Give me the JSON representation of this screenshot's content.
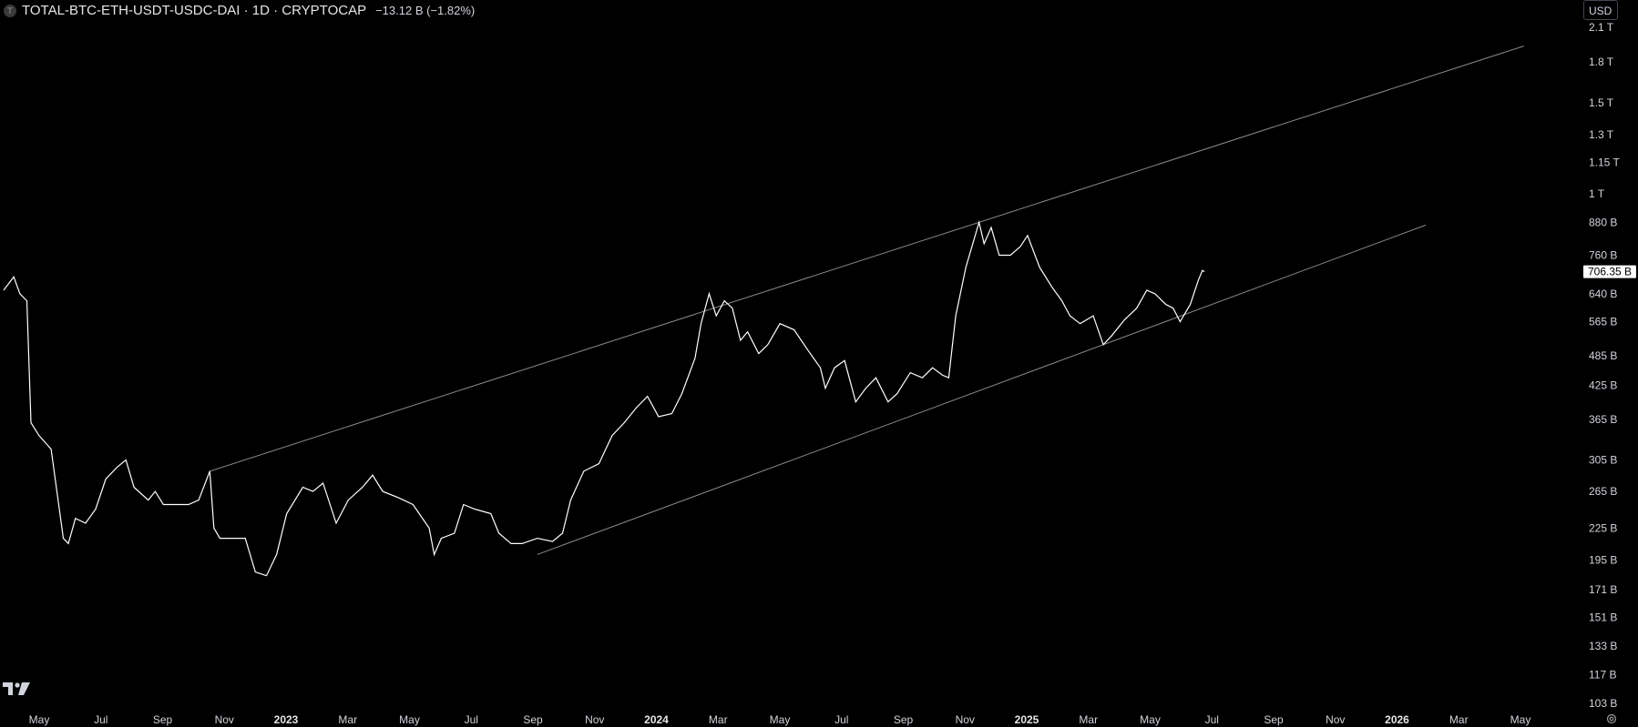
{
  "header": {
    "symbol_icon": "T",
    "title": "TOTAL-BTC-ETH-USDT-USDC-DAI · 1D · CRYPTOCAP",
    "change": "−13.12 B (−1.82%)"
  },
  "currency_button": "USD",
  "last_price_label": "706.35 B",
  "icons": {
    "logo": "tradingview-logo-icon",
    "settings": "settings-icon"
  },
  "colors": {
    "background": "#000000",
    "line": "#ffffff",
    "channel": "#8a8a8a",
    "axis_text": "#d1d4dc"
  },
  "chart_data": {
    "type": "line",
    "scale": "log",
    "grid": false,
    "x_axis_labels": [
      "May",
      "Jul",
      "Sep",
      "Nov",
      "2023",
      "Mar",
      "May",
      "Jul",
      "Sep",
      "Nov",
      "2024",
      "Mar",
      "May",
      "Jul",
      "Sep",
      "Nov",
      "2025",
      "Mar",
      "May",
      "Jul",
      "Sep",
      "Nov",
      "2026",
      "Mar",
      "May"
    ],
    "y_axis_labels": [
      "2.1 T",
      "1.8 T",
      "1.5 T",
      "1.3 T",
      "1.15 T",
      "1 T",
      "880 B",
      "760 B",
      "640 B",
      "565 B",
      "485 B",
      "425 B",
      "365 B",
      "305 B",
      "265 B",
      "225 B",
      "195 B",
      "171 B",
      "151 B",
      "133 B",
      "117 B",
      "103 B"
    ],
    "y_values_billion": [
      2100,
      1800,
      1500,
      1300,
      1150,
      1000,
      880,
      760,
      640,
      565,
      485,
      425,
      365,
      305,
      265,
      225,
      195,
      171,
      151,
      133,
      117,
      103
    ],
    "x_range": [
      "2022-04-15",
      "2026-05-31"
    ],
    "y_range_billion": [
      103,
      2150
    ],
    "series": [
      {
        "unit": "billion USD",
        "values": [
          [
            "2022-04-15",
            650
          ],
          [
            "2022-04-25",
            690
          ],
          [
            "2022-05-01",
            640
          ],
          [
            "2022-05-08",
            620
          ],
          [
            "2022-05-12",
            360
          ],
          [
            "2022-05-20",
            340
          ],
          [
            "2022-06-01",
            320
          ],
          [
            "2022-06-13",
            215
          ],
          [
            "2022-06-18",
            210
          ],
          [
            "2022-06-25",
            235
          ],
          [
            "2022-07-05",
            230
          ],
          [
            "2022-07-15",
            245
          ],
          [
            "2022-07-25",
            280
          ],
          [
            "2022-08-05",
            295
          ],
          [
            "2022-08-14",
            305
          ],
          [
            "2022-08-22",
            270
          ],
          [
            "2022-09-05",
            255
          ],
          [
            "2022-09-12",
            265
          ],
          [
            "2022-09-20",
            250
          ],
          [
            "2022-10-01",
            250
          ],
          [
            "2022-10-15",
            250
          ],
          [
            "2022-10-25",
            255
          ],
          [
            "2022-11-05",
            290
          ],
          [
            "2022-11-09",
            225
          ],
          [
            "2022-11-15",
            215
          ],
          [
            "2022-11-25",
            215
          ],
          [
            "2022-12-10",
            215
          ],
          [
            "2022-12-20",
            185
          ],
          [
            "2022-12-31",
            182
          ],
          [
            "2023-01-10",
            200
          ],
          [
            "2023-01-20",
            240
          ],
          [
            "2023-02-05",
            270
          ],
          [
            "2023-02-15",
            265
          ],
          [
            "2023-02-25",
            275
          ],
          [
            "2023-03-10",
            230
          ],
          [
            "2023-03-22",
            255
          ],
          [
            "2023-04-05",
            270
          ],
          [
            "2023-04-15",
            285
          ],
          [
            "2023-04-25",
            265
          ],
          [
            "2023-05-10",
            258
          ],
          [
            "2023-05-25",
            250
          ],
          [
            "2023-06-10",
            225
          ],
          [
            "2023-06-15",
            200
          ],
          [
            "2023-06-22",
            215
          ],
          [
            "2023-07-05",
            220
          ],
          [
            "2023-07-14",
            250
          ],
          [
            "2023-07-25",
            245
          ],
          [
            "2023-08-10",
            240
          ],
          [
            "2023-08-18",
            220
          ],
          [
            "2023-08-30",
            210
          ],
          [
            "2023-09-10",
            210
          ],
          [
            "2023-09-25",
            215
          ],
          [
            "2023-10-10",
            212
          ],
          [
            "2023-10-20",
            220
          ],
          [
            "2023-10-28",
            255
          ],
          [
            "2023-11-10",
            290
          ],
          [
            "2023-11-25",
            300
          ],
          [
            "2023-12-08",
            340
          ],
          [
            "2023-12-20",
            360
          ],
          [
            "2024-01-01",
            385
          ],
          [
            "2024-01-12",
            405
          ],
          [
            "2024-01-23",
            370
          ],
          [
            "2024-02-05",
            375
          ],
          [
            "2024-02-15",
            410
          ],
          [
            "2024-02-28",
            480
          ],
          [
            "2024-03-05",
            560
          ],
          [
            "2024-03-13",
            640
          ],
          [
            "2024-03-20",
            580
          ],
          [
            "2024-03-28",
            620
          ],
          [
            "2024-04-05",
            600
          ],
          [
            "2024-04-13",
            520
          ],
          [
            "2024-04-20",
            540
          ],
          [
            "2024-05-01",
            490
          ],
          [
            "2024-05-10",
            510
          ],
          [
            "2024-05-22",
            560
          ],
          [
            "2024-06-05",
            545
          ],
          [
            "2024-06-18",
            500
          ],
          [
            "2024-07-01",
            460
          ],
          [
            "2024-07-06",
            420
          ],
          [
            "2024-07-15",
            460
          ],
          [
            "2024-07-25",
            475
          ],
          [
            "2024-08-05",
            395
          ],
          [
            "2024-08-15",
            420
          ],
          [
            "2024-08-25",
            440
          ],
          [
            "2024-09-06",
            395
          ],
          [
            "2024-09-15",
            410
          ],
          [
            "2024-09-28",
            450
          ],
          [
            "2024-10-10",
            440
          ],
          [
            "2024-10-20",
            460
          ],
          [
            "2024-10-30",
            445
          ],
          [
            "2024-11-05",
            440
          ],
          [
            "2024-11-12",
            580
          ],
          [
            "2024-11-22",
            720
          ],
          [
            "2024-12-05",
            880
          ],
          [
            "2024-12-10",
            800
          ],
          [
            "2024-12-17",
            860
          ],
          [
            "2024-12-25",
            760
          ],
          [
            "2025-01-05",
            760
          ],
          [
            "2025-01-15",
            790
          ],
          [
            "2025-01-22",
            830
          ],
          [
            "2025-02-03",
            720
          ],
          [
            "2025-02-15",
            660
          ],
          [
            "2025-02-25",
            620
          ],
          [
            "2025-03-05",
            580
          ],
          [
            "2025-03-15",
            560
          ],
          [
            "2025-03-28",
            580
          ],
          [
            "2025-04-07",
            510
          ],
          [
            "2025-04-15",
            530
          ],
          [
            "2025-04-28",
            570
          ],
          [
            "2025-05-10",
            600
          ],
          [
            "2025-05-20",
            650
          ],
          [
            "2025-05-28",
            640
          ],
          [
            "2025-06-08",
            610
          ],
          [
            "2025-06-15",
            600
          ],
          [
            "2025-06-22",
            565
          ],
          [
            "2025-07-02",
            610
          ],
          [
            "2025-07-10",
            680
          ],
          [
            "2025-07-14",
            710
          ],
          [
            "2025-07-16",
            706
          ]
        ]
      }
    ],
    "trend_channel": {
      "upper": [
        [
          "2022-11-05",
          290
        ],
        [
          "2024-12-05",
          880
        ]
      ],
      "lower": [
        [
          "2023-09-25",
          200
        ],
        [
          "2025-04-07",
          510
        ]
      ]
    }
  }
}
